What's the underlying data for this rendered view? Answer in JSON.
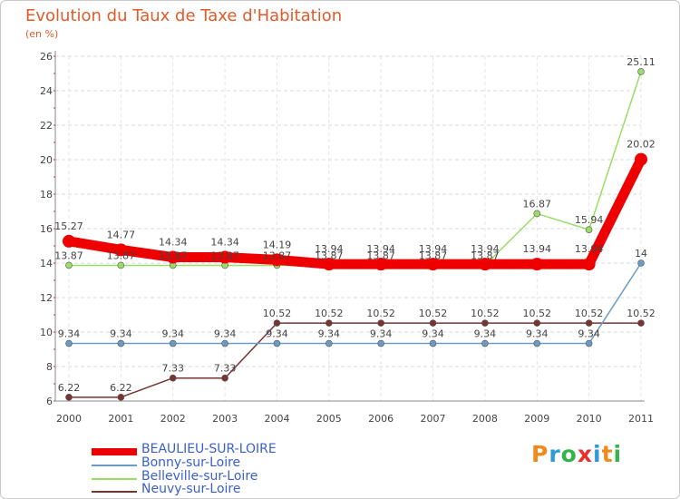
{
  "chart_data": {
    "type": "line",
    "title": "Evolution du Taux de Taxe d'Habitation",
    "subtitle": "(en %)",
    "xlabel": "",
    "ylabel": "(en %)",
    "categories": [
      "2000",
      "2001",
      "2002",
      "2003",
      "2004",
      "2005",
      "2006",
      "2007",
      "2008",
      "2009",
      "2010",
      "2011"
    ],
    "ylim": [
      6,
      26
    ],
    "yticks": [
      6,
      8,
      10,
      12,
      14,
      16,
      18,
      20,
      22,
      24,
      26
    ],
    "grid": true,
    "legend_position": "bottom-left",
    "series": [
      {
        "name": "BEAULIEU-SUR-LOIRE",
        "color": "#ee0000",
        "labels": [
          "15.27",
          "14.77",
          "14.34",
          "14.34",
          "14.19",
          "13.94",
          "13.94",
          "13.94",
          "13.94",
          "13.94",
          "13.94",
          "20.02"
        ],
        "values": [
          15.27,
          14.77,
          14.34,
          14.34,
          14.19,
          13.94,
          13.94,
          13.94,
          13.94,
          13.94,
          13.94,
          20.02
        ]
      },
      {
        "name": "Bonny-sur-Loire",
        "color": "#6a9ac6",
        "labels": [
          "9.34",
          "9.34",
          "9.34",
          "9.34",
          "9.34",
          "9.34",
          "9.34",
          "9.34",
          "9.34",
          "9.34",
          "9.34",
          "14"
        ],
        "values": [
          9.34,
          9.34,
          9.34,
          9.34,
          9.34,
          9.34,
          9.34,
          9.34,
          9.34,
          9.34,
          9.34,
          14
        ]
      },
      {
        "name": "Belleville-sur-Loire",
        "color": "#99dd66",
        "labels": [
          "13.87",
          "13.87",
          "13.87",
          "13.87",
          "13.87",
          "13.87",
          "13.87",
          "13.87",
          "13.87",
          "16.87",
          "15.94",
          "25.11"
        ],
        "values": [
          13.87,
          13.87,
          13.87,
          13.87,
          13.87,
          13.87,
          13.87,
          13.87,
          13.87,
          16.87,
          15.94,
          25.11
        ]
      },
      {
        "name": "Neuvy-sur-Loire",
        "color": "#7a3333",
        "labels": [
          "6.22",
          "6.22",
          "7.33",
          "7.33",
          "10.52",
          "10.52",
          "10.52",
          "10.52",
          "10.52",
          "10.52",
          "10.52",
          "10.52"
        ],
        "values": [
          6.22,
          6.22,
          7.33,
          7.33,
          10.52,
          10.52,
          10.52,
          10.52,
          10.52,
          10.52,
          10.52,
          10.52
        ]
      }
    ]
  },
  "legend": {
    "items": [
      {
        "label": "BEAULIEU-SUR-LOIRE",
        "color": "#ee0000",
        "text_color": "#3a5fd0"
      },
      {
        "label": "Bonny-sur-Loire",
        "color": "#6a9ac6",
        "text_color": "#3a5fd0"
      },
      {
        "label": "Belleville-sur-Loire",
        "color": "#99dd66",
        "text_color": "#3a5fd0"
      },
      {
        "label": "Neuvy-sur-Loire",
        "color": "#7a3333",
        "text_color": "#3a5fd0"
      }
    ]
  },
  "brand": {
    "letters": [
      "P",
      "r",
      "o",
      "x",
      "i",
      "t",
      "i"
    ],
    "colors": [
      "#f08a1c",
      "#2f9ad8",
      "#35b44a",
      "#e8312a",
      "#2f9ad8",
      "#f08a1c",
      "#35b44a"
    ]
  }
}
